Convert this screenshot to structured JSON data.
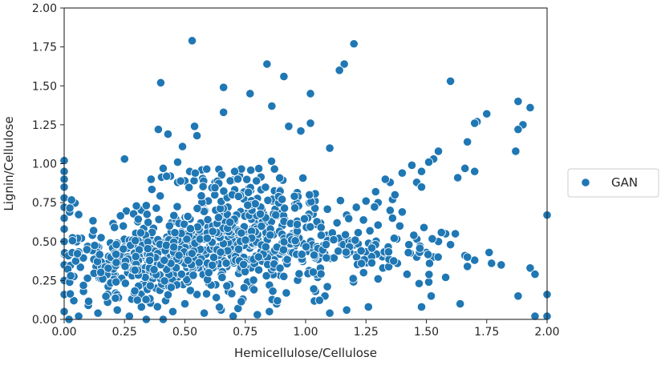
{
  "chart_data": {
    "type": "scatter",
    "title": "",
    "xlabel": "Hemicellulose/Cellulose",
    "ylabel": "Lignin/Cellulose",
    "xlim": [
      0,
      2
    ],
    "ylim": [
      0,
      2
    ],
    "xticks": [
      "0.00",
      "0.25",
      "0.50",
      "0.75",
      "1.00",
      "1.25",
      "1.50",
      "1.75",
      "2.00"
    ],
    "yticks": [
      "0.00",
      "0.25",
      "0.50",
      "0.75",
      "1.00",
      "1.25",
      "1.50",
      "1.75",
      "2.00"
    ],
    "grid": false,
    "legend_position": "outside-right",
    "series": [
      {
        "name": "GAN",
        "color": "#1f77b4",
        "marker": "circle",
        "points": [
          [
            0.53,
            1.79
          ],
          [
            1.2,
            1.77
          ],
          [
            0.84,
            1.64
          ],
          [
            1.16,
            1.64
          ],
          [
            1.14,
            1.6
          ],
          [
            0.91,
            1.56
          ],
          [
            0.4,
            1.52
          ],
          [
            1.6,
            1.53
          ],
          [
            0.66,
            1.49
          ],
          [
            0.77,
            1.45
          ],
          [
            1.02,
            1.45
          ],
          [
            0.86,
            1.37
          ],
          [
            0.66,
            1.33
          ],
          [
            1.88,
            1.4
          ],
          [
            1.93,
            1.36
          ],
          [
            1.75,
            1.32
          ],
          [
            0.54,
            1.24
          ],
          [
            0.93,
            1.24
          ],
          [
            1.02,
            1.26
          ],
          [
            0.39,
            1.22
          ],
          [
            0.43,
            1.19
          ],
          [
            0.55,
            1.18
          ],
          [
            0.98,
            1.21
          ],
          [
            1.71,
            1.27
          ],
          [
            1.7,
            1.26
          ],
          [
            1.9,
            1.25
          ],
          [
            1.88,
            1.22
          ],
          [
            0.49,
            1.11
          ],
          [
            1.1,
            1.1
          ],
          [
            1.67,
            1.14
          ],
          [
            1.87,
            1.08
          ],
          [
            0.25,
            1.03
          ],
          [
            0.47,
            1.01
          ],
          [
            0.52,
            0.95
          ],
          [
            0.44,
            0.92
          ],
          [
            0.41,
            0.97
          ],
          [
            0.5,
            0.89
          ],
          [
            0.36,
            0.9
          ],
          [
            0.47,
            0.88
          ],
          [
            0.57,
            0.96
          ],
          [
            0.0,
            1.02
          ],
          [
            0.0,
            0.95
          ],
          [
            0.0,
            0.9
          ],
          [
            0.0,
            0.85
          ],
          [
            0.0,
            0.78
          ],
          [
            0.0,
            0.72
          ],
          [
            0.0,
            0.65
          ],
          [
            0.0,
            0.58
          ],
          [
            0.0,
            0.5
          ],
          [
            0.0,
            0.42
          ],
          [
            0.0,
            0.35
          ],
          [
            0.0,
            0.25
          ],
          [
            0.0,
            0.16
          ],
          [
            0.0,
            0.05
          ],
          [
            0.02,
            0.0
          ],
          [
            0.06,
            0.02
          ],
          [
            1.55,
            1.08
          ],
          [
            1.53,
            1.03
          ],
          [
            1.51,
            1.01
          ],
          [
            1.44,
            0.99
          ],
          [
            1.4,
            0.94
          ],
          [
            1.35,
            0.88
          ],
          [
            1.33,
            0.9
          ],
          [
            1.29,
            0.82
          ],
          [
            1.25,
            0.76
          ],
          [
            1.21,
            0.72
          ],
          [
            1.17,
            0.67
          ],
          [
            1.13,
            0.62
          ],
          [
            1.3,
            0.75
          ],
          [
            1.36,
            0.77
          ],
          [
            1.46,
            0.88
          ],
          [
            1.48,
            0.95
          ],
          [
            1.66,
            0.97
          ],
          [
            1.7,
            0.95
          ],
          [
            1.63,
            0.91
          ],
          [
            1.48,
            0.85
          ],
          [
            1.37,
            0.8
          ],
          [
            1.35,
            0.7
          ],
          [
            1.4,
            0.69
          ],
          [
            1.36,
            0.65
          ],
          [
            1.39,
            0.6
          ],
          [
            1.49,
            0.59
          ],
          [
            1.58,
            0.55
          ],
          [
            1.55,
            0.5
          ],
          [
            1.5,
            0.43
          ],
          [
            1.46,
            0.4
          ],
          [
            1.38,
            0.36
          ],
          [
            1.32,
            0.33
          ],
          [
            1.24,
            0.3
          ],
          [
            1.2,
            0.26
          ],
          [
            1.62,
            0.55
          ],
          [
            1.6,
            0.48
          ],
          [
            1.66,
            0.41
          ],
          [
            1.7,
            0.38
          ],
          [
            1.76,
            0.43
          ],
          [
            1.77,
            0.36
          ],
          [
            1.81,
            0.35
          ],
          [
            1.93,
            0.33
          ],
          [
            1.95,
            0.29
          ],
          [
            1.88,
            0.15
          ],
          [
            2.0,
            0.16
          ],
          [
            2.0,
            0.02
          ],
          [
            2.0,
            0.67
          ],
          [
            1.95,
            0.02
          ],
          [
            1.67,
            0.34
          ],
          [
            1.67,
            0.4
          ],
          [
            1.58,
            0.27
          ],
          [
            1.51,
            0.24
          ],
          [
            1.47,
            0.23
          ],
          [
            1.42,
            0.29
          ],
          [
            1.3,
            0.26
          ],
          [
            1.2,
            0.24
          ],
          [
            1.64,
            0.1
          ],
          [
            1.52,
            0.15
          ],
          [
            1.48,
            0.08
          ],
          [
            1.26,
            0.08
          ],
          [
            1.17,
            0.06
          ],
          [
            1.1,
            0.04
          ],
          [
            1.08,
            0.15
          ],
          [
            1.09,
            0.21
          ],
          [
            1.05,
            0.27
          ],
          [
            0.97,
            0.26
          ],
          [
            0.92,
            0.17
          ],
          [
            0.88,
            0.1
          ],
          [
            0.85,
            0.05
          ],
          [
            0.8,
            0.03
          ],
          [
            0.74,
            0.13
          ],
          [
            0.72,
            0.07
          ],
          [
            0.7,
            0.02
          ],
          [
            0.65,
            0.06
          ],
          [
            0.63,
            0.14
          ],
          [
            0.6,
            0.23
          ],
          [
            0.55,
            0.16
          ],
          [
            0.5,
            0.1
          ],
          [
            0.45,
            0.05
          ],
          [
            0.42,
            0.12
          ],
          [
            0.38,
            0.2
          ],
          [
            0.32,
            0.08
          ],
          [
            0.28,
            0.13
          ],
          [
            0.22,
            0.06
          ],
          [
            0.18,
            0.11
          ],
          [
            0.14,
            0.04
          ],
          [
            0.1,
            0.09
          ],
          [
            0.08,
            0.18
          ],
          [
            0.04,
            0.12
          ],
          [
            0.27,
            0.02
          ],
          [
            0.34,
            0.0
          ],
          [
            0.41,
            0.0
          ],
          [
            0.58,
            0.04
          ],
          [
            0.68,
            0.18
          ],
          [
            0.78,
            0.2
          ],
          [
            0.85,
            0.22
          ]
        ]
      }
    ]
  }
}
